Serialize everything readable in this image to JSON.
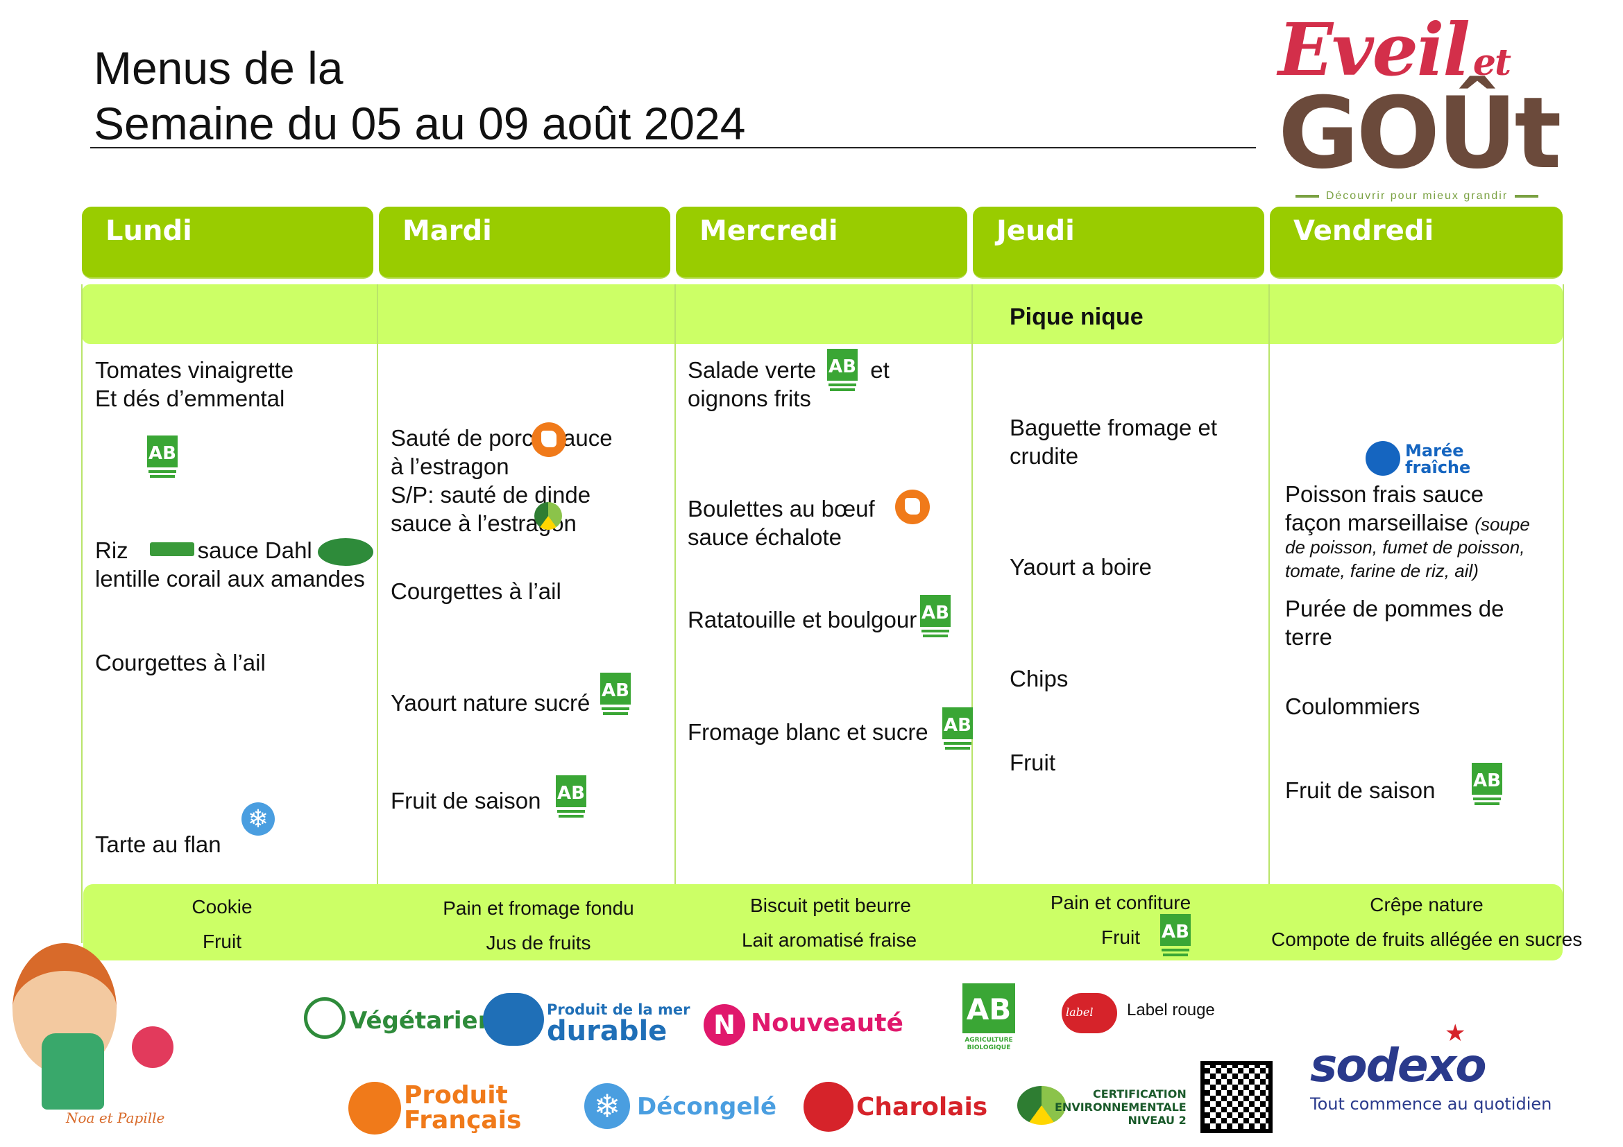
{
  "header": {
    "title_line1": "Menus de la",
    "title_line2": "Semaine du 05 au 09 août 2024"
  },
  "brand": {
    "logo_word1": "Eveil",
    "logo_word2": "et",
    "logo_word3": "GOÛt",
    "tagline": "Découvrir pour mieux grandir",
    "caterer": "sodexo",
    "caterer_tagline": "Tout commence au quotidien",
    "mascot": "Noa et Papille"
  },
  "days": [
    "Lundi",
    "Mardi",
    "Mercredi",
    "Jeudi",
    "Vendredi"
  ],
  "starter_band": {
    "jeudi_note": "Pique nique"
  },
  "menu": {
    "lundi": {
      "starter_1": "Tomates vinaigrette",
      "starter_2": "Et dés d’emmental",
      "main_1a": "Riz",
      "main_1b": "sauce Dahl",
      "main_2": "lentille corail aux amandes",
      "side": "Courgettes à l’ail",
      "dessert": "Tarte au flan"
    },
    "mardi": {
      "main_1a": "Sauté de porc",
      "main_1b": "sauce",
      "main_2": "à l’estragon",
      "main_3": "S/P: sauté de dinde",
      "main_4": "sauce à l’estragon",
      "side": "Courgettes à l’ail",
      "dairy": "Yaourt nature sucré",
      "dessert": "Fruit de saison"
    },
    "mercredi": {
      "starter_1a": "Salade verte",
      "starter_1b": "et",
      "starter_2": "oignons frits",
      "main_1": "Boulettes au bœuf",
      "main_2": "sauce échalote",
      "side": "Ratatouille et boulgour",
      "dessert": "Fromage blanc et sucre"
    },
    "jeudi": {
      "main_1": "Baguette fromage et",
      "main_2": "crudite",
      "dairy": "Yaourt a boire",
      "side": "Chips",
      "dessert": "Fruit"
    },
    "vendredi": {
      "main_1": "Poisson frais sauce",
      "main_2": "façon marseillaise",
      "main_note_1": "(soupe",
      "main_note_2": "de poisson, fumet de poisson,",
      "main_note_3": "tomate, farine de riz, ail)",
      "side_1": "Purée de pommes de",
      "side_2": "terre",
      "cheese": "Coulommiers",
      "dessert": "Fruit de saison",
      "badge_1": "Marée",
      "badge_2": "fraîche"
    }
  },
  "snack": {
    "lundi": [
      "Cookie",
      "Fruit"
    ],
    "mardi": [
      "Pain et fromage fondu",
      "Jus de fruits"
    ],
    "mercredi": [
      "Biscuit petit beurre",
      "Lait aromatisé fraise"
    ],
    "jeudi": [
      "Pain et confiture",
      "Fruit"
    ],
    "vendredi": [
      "Crêpe nature",
      "Compote de fruits allégée en sucres"
    ]
  },
  "legend": {
    "vegetarien": "Végétarien",
    "mer_1": "Produit de la mer",
    "mer_2": "durable",
    "nouveaute": "Nouveauté",
    "label_rouge": "Label rouge",
    "produit_1": "Produit",
    "produit_2": "Français",
    "decongele": "Décongelé",
    "charolais": "Charolais",
    "cert_1": "CERTIFICATION",
    "cert_2": "ENVIRONNEMENTALE",
    "cert_3": "NIVEAU 2",
    "ab_1": "AB",
    "ab_2": "AGRICULTURE",
    "ab_3": "BIOLOGIQUE",
    "label_word": "label",
    "nouveaute_letter": "N"
  },
  "colors": {
    "day_header": "#99cc00",
    "band": "#ccff66",
    "ab_green": "#3aa635",
    "french_orange": "#f07a1a",
    "snow_blue": "#4a9ee0",
    "nouveaute_pink": "#e0186c",
    "charolais_red": "#d6232a"
  }
}
